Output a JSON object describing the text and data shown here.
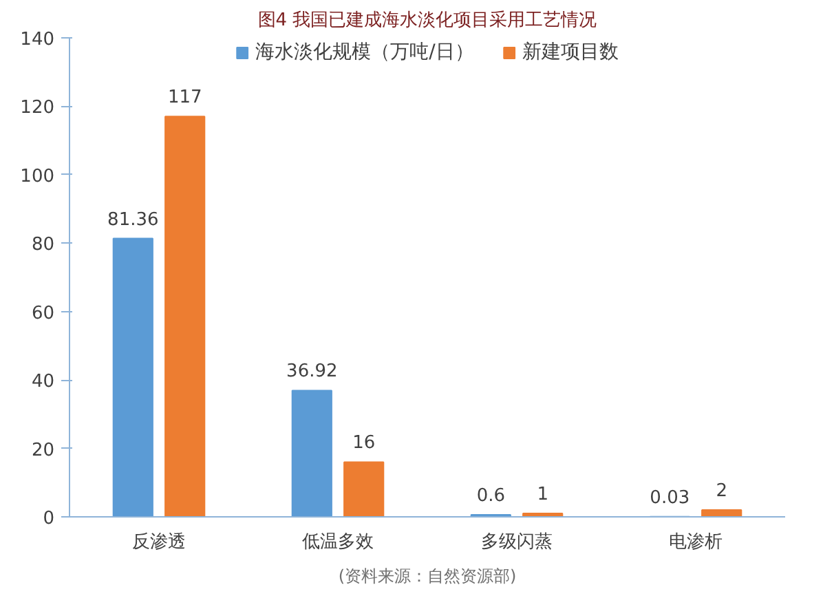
{
  "chart_data": {
    "type": "bar",
    "title": "图4 我国已建成海水淡化项目采用工艺情况",
    "categories": [
      "反渗透",
      "低温多效",
      "多级闪蒸",
      "电渗析"
    ],
    "series": [
      {
        "name": "海水淡化规模（万吨/日）",
        "color": "#5b9bd5",
        "values": [
          81.36,
          36.92,
          0.6,
          0.03
        ]
      },
      {
        "name": "新建项目数",
        "color": "#ed7d31",
        "values": [
          117,
          16,
          1,
          2
        ]
      }
    ],
    "ylim": [
      0,
      140
    ],
    "yticks": [
      0,
      20,
      40,
      60,
      80,
      100,
      120,
      140
    ],
    "data_labels": true,
    "legend": "top",
    "grid": false,
    "annotations": [
      "(资料来源：自然资源部)"
    ]
  }
}
